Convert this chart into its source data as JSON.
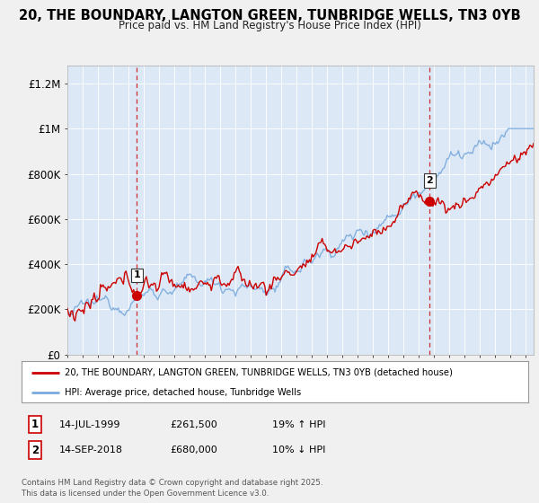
{
  "title_line1": "20, THE BOUNDARY, LANGTON GREEN, TUNBRIDGE WELLS, TN3 0YB",
  "title_line2": "Price paid vs. HM Land Registry's House Price Index (HPI)",
  "ylabel_ticks": [
    "£0",
    "£200K",
    "£400K",
    "£600K",
    "£800K",
    "£1M",
    "£1.2M"
  ],
  "ytick_values": [
    0,
    200000,
    400000,
    600000,
    800000,
    1000000,
    1200000
  ],
  "ylim": [
    0,
    1280000
  ],
  "xlim_start": 1995.25,
  "xlim_end": 2025.5,
  "legend_line1": "20, THE BOUNDARY, LANGTON GREEN, TUNBRIDGE WELLS, TN3 0YB (detached house)",
  "legend_line2": "HPI: Average price, detached house, Tunbridge Wells",
  "marker1_year": 1999.54,
  "marker1_value": 261500,
  "marker1_label": "1",
  "marker2_year": 2018.71,
  "marker2_value": 680000,
  "marker2_label": "2",
  "footer": "Contains HM Land Registry data © Crown copyright and database right 2025.\nThis data is licensed under the Open Government Licence v3.0.",
  "property_color": "#cc0000",
  "hpi_color": "#7aaadd",
  "background_color": "#f0f0f0",
  "plot_background": "#dce8f5",
  "grid_color": "#ffffff",
  "vline_color": "#cc0000"
}
